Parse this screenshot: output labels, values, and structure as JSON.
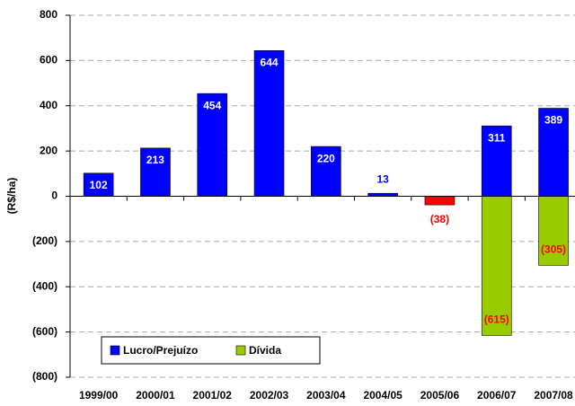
{
  "chart_data": {
    "type": "bar",
    "stacked": true,
    "y_label": "(R$/ha)",
    "categories": [
      "1999/00",
      "2000/01",
      "2001/02",
      "2002/03",
      "2003/04",
      "2004/05",
      "2005/06",
      "2006/07",
      "2007/08"
    ],
    "series": [
      {
        "name": "Lucro/Prejuízo",
        "color": "#0000FF",
        "colors": [
          "#0000FF",
          "#0000FF",
          "#0000FF",
          "#0000FF",
          "#0000FF",
          "#0000FF",
          "#FF0000",
          "#0000FF",
          "#0000FF"
        ],
        "values": [
          102,
          213,
          454,
          644,
          220,
          13,
          -38,
          311,
          389
        ],
        "value_labels": [
          "102",
          "213",
          "454",
          "644",
          "220",
          "13",
          "(38)",
          "311",
          "389"
        ]
      },
      {
        "name": "Dívida",
        "color": "#99CC00",
        "values": [
          null,
          null,
          null,
          null,
          null,
          null,
          null,
          -615,
          -305
        ],
        "value_labels": [
          null,
          null,
          null,
          null,
          null,
          null,
          null,
          "(615)",
          "(305)"
        ]
      }
    ],
    "ylim": [
      -800,
      800
    ],
    "yticks": [
      {
        "value": -800,
        "label": "(800)"
      },
      {
        "value": -600,
        "label": "(600)"
      },
      {
        "value": -400,
        "label": "(400)"
      },
      {
        "value": -200,
        "label": "(200)"
      },
      0,
      200,
      400,
      600,
      800
    ],
    "grid": true,
    "legend": "lower left"
  }
}
